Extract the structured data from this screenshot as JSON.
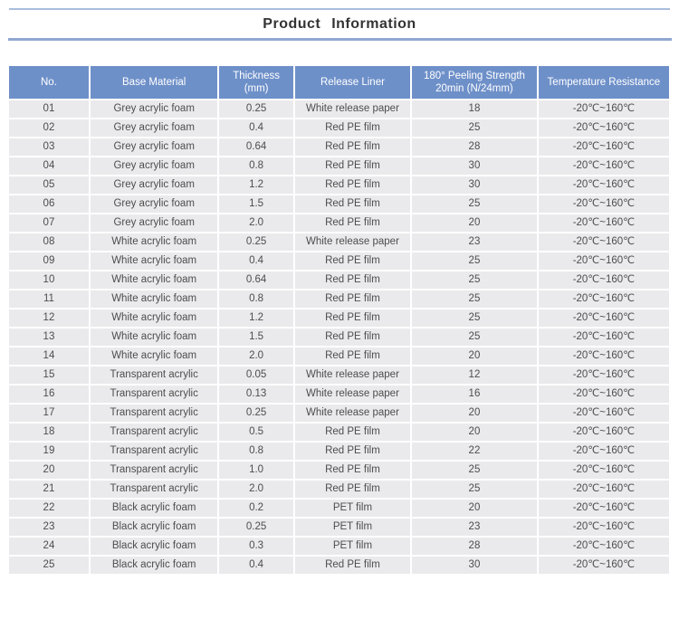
{
  "page": {
    "title": "Product Information"
  },
  "colors": {
    "rule_top": "#a9bddd",
    "rule_bottom": "#90a8d0",
    "header_bg": "#6e90c9",
    "header_text": "#ffffff",
    "row_bg": "#eaeaec",
    "cell_text": "#4d4d4d"
  },
  "table": {
    "columns": [
      {
        "id": "no",
        "label": "No."
      },
      {
        "id": "base-material",
        "label": "Base Material"
      },
      {
        "id": "thickness",
        "label": "Thickness\n(mm)"
      },
      {
        "id": "release-liner",
        "label": "Release Liner"
      },
      {
        "id": "peeling-strength",
        "label": "180° Peeling Strength\n20min (N/24mm)"
      },
      {
        "id": "temperature-resistance",
        "label": "Temperature Resistance"
      }
    ],
    "rows": [
      [
        "01",
        "Grey acrylic foam",
        "0.25",
        "White release paper",
        "18",
        "-20℃~160℃"
      ],
      [
        "02",
        "Grey acrylic foam",
        "0.4",
        "Red PE film",
        "25",
        "-20℃~160℃"
      ],
      [
        "03",
        "Grey acrylic foam",
        "0.64",
        "Red PE film",
        "28",
        "-20℃~160℃"
      ],
      [
        "04",
        "Grey acrylic foam",
        "0.8",
        "Red PE film",
        "30",
        "-20℃~160℃"
      ],
      [
        "05",
        "Grey acrylic foam",
        "1.2",
        "Red PE film",
        "30",
        "-20℃~160℃"
      ],
      [
        "06",
        "Grey acrylic foam",
        "1.5",
        "Red PE film",
        "25",
        "-20℃~160℃"
      ],
      [
        "07",
        "Grey acrylic foam",
        "2.0",
        "Red PE film",
        "20",
        "-20℃~160℃"
      ],
      [
        "08",
        "White acrylic foam",
        "0.25",
        "White release paper",
        "23",
        "-20℃~160℃"
      ],
      [
        "09",
        "White acrylic foam",
        "0.4",
        "Red PE film",
        "25",
        "-20℃~160℃"
      ],
      [
        "10",
        "White acrylic foam",
        "0.64",
        "Red PE film",
        "25",
        "-20℃~160℃"
      ],
      [
        "11",
        "White acrylic foam",
        "0.8",
        "Red PE film",
        "25",
        "-20℃~160℃"
      ],
      [
        "12",
        "White acrylic foam",
        "1.2",
        "Red PE film",
        "25",
        "-20℃~160℃"
      ],
      [
        "13",
        "White acrylic foam",
        "1.5",
        "Red PE film",
        "25",
        "-20℃~160℃"
      ],
      [
        "14",
        "White acrylic foam",
        "2.0",
        "Red PE film",
        "20",
        "-20℃~160℃"
      ],
      [
        "15",
        "Transparent acrylic",
        "0.05",
        "White release paper",
        "12",
        "-20℃~160℃"
      ],
      [
        "16",
        "Transparent acrylic",
        "0.13",
        "White release paper",
        "16",
        "-20℃~160℃"
      ],
      [
        "17",
        "Transparent acrylic",
        "0.25",
        "White release paper",
        "20",
        "-20℃~160℃"
      ],
      [
        "18",
        "Transparent acrylic",
        "0.5",
        "Red PE film",
        "20",
        "-20℃~160℃"
      ],
      [
        "19",
        "Transparent acrylic",
        "0.8",
        "Red PE film",
        "22",
        "-20℃~160℃"
      ],
      [
        "20",
        "Transparent acrylic",
        "1.0",
        "Red PE film",
        "25",
        "-20℃~160℃"
      ],
      [
        "21",
        "Transparent acrylic",
        "2.0",
        "Red PE film",
        "25",
        "-20℃~160℃"
      ],
      [
        "22",
        "Black acrylic foam",
        "0.2",
        "PET film",
        "20",
        "-20℃~160℃"
      ],
      [
        "23",
        "Black acrylic foam",
        "0.25",
        "PET film",
        "23",
        "-20℃~160℃"
      ],
      [
        "24",
        "Black acrylic foam",
        "0.3",
        "PET film",
        "28",
        "-20℃~160℃"
      ],
      [
        "25",
        "Black acrylic foam",
        "0.4",
        "Red PE film",
        "30",
        "-20℃~160℃"
      ]
    ]
  }
}
